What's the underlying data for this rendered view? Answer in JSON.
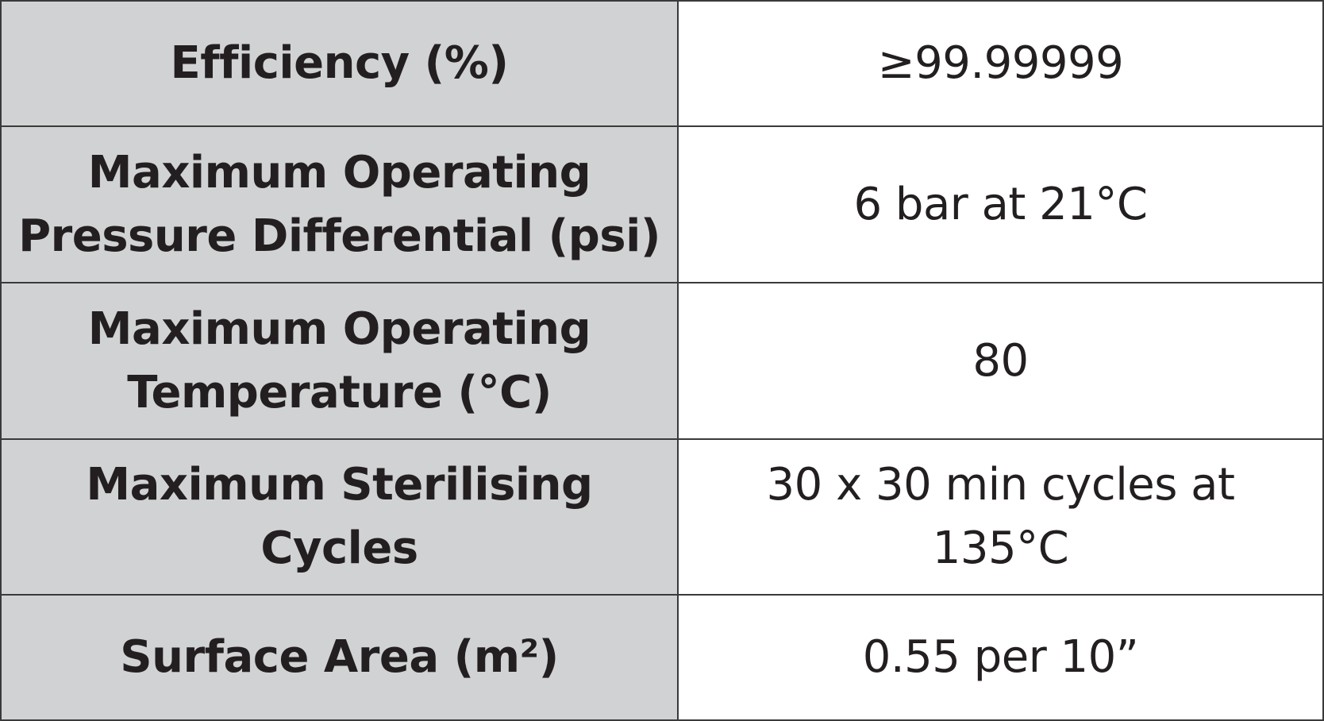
{
  "rows": [
    {
      "label_lines": [
        "Efficiency (%)"
      ],
      "value_lines": [
        "≥99.99999"
      ]
    },
    {
      "label_lines": [
        "Maximum Operating",
        "Pressure Differential (psi)"
      ],
      "value_lines": [
        "6 bar at 21°C"
      ]
    },
    {
      "label_lines": [
        "Maximum Operating",
        "Temperature (°C)"
      ],
      "value_lines": [
        "80"
      ]
    },
    {
      "label_lines": [
        "Maximum Sterilising",
        "Cycles"
      ],
      "value_lines": [
        "30 x 30 min cycles at",
        "135°C"
      ]
    },
    {
      "label_lines": [
        "Surface Area (m²)"
      ],
      "value_lines": [
        "0.55 per 10”"
      ]
    }
  ],
  "colors": {
    "label_background": "#d1d2d4",
    "value_background": "#ffffff",
    "text": "#231f20",
    "border": "#3a3a3a"
  }
}
